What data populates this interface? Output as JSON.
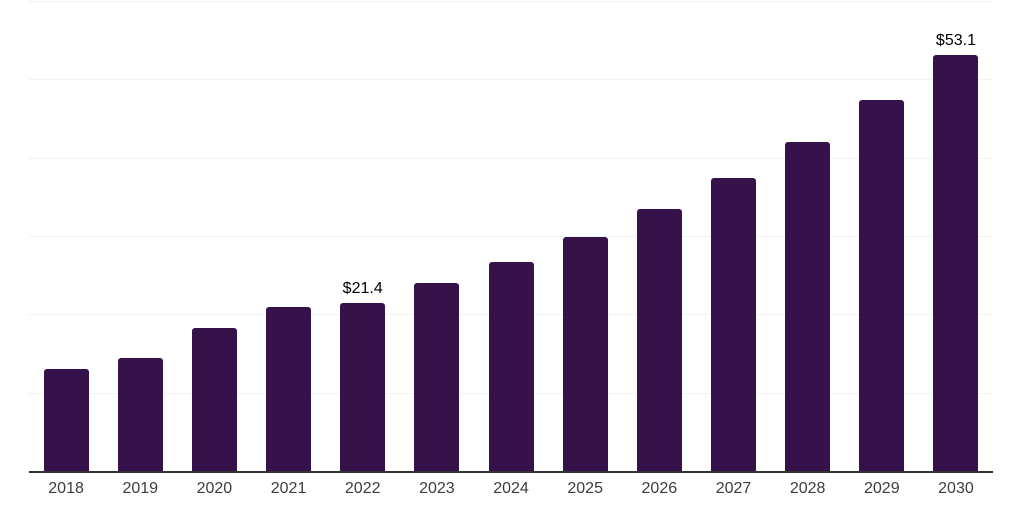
{
  "chart_data": {
    "type": "bar",
    "title": "",
    "xlabel": "",
    "ylabel": "",
    "categories": [
      "2018",
      "2019",
      "2020",
      "2021",
      "2022",
      "2023",
      "2024",
      "2025",
      "2026",
      "2027",
      "2028",
      "2029",
      "2030"
    ],
    "values": [
      13.0,
      14.4,
      18.3,
      20.9,
      21.4,
      24.0,
      26.7,
      29.9,
      33.4,
      37.4,
      42.0,
      47.4,
      53.1
    ],
    "bar_labels": [
      "",
      "",
      "",
      "",
      "$21.4",
      "",
      "",
      "",
      "",
      "",
      "",
      "",
      "$53.1"
    ],
    "ylim": [
      0,
      60
    ],
    "gridline_step": 10,
    "grid": "horizontal-only",
    "legend": "none",
    "colors": {
      "bar": "#36124a",
      "gridline": "#f2f2f2",
      "axis_line": "#333333",
      "value_label": "#000000",
      "tick_label": "#3d3d3d"
    }
  }
}
